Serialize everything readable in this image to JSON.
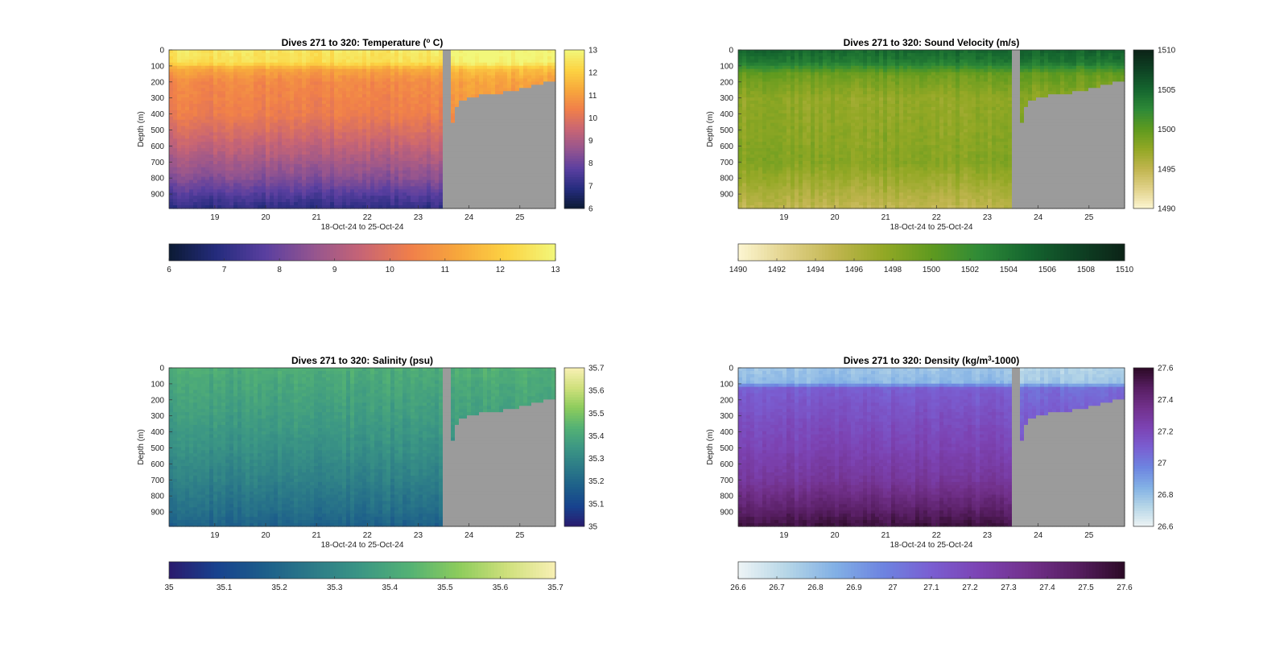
{
  "figure": {
    "mask_color": "#9b9b9b",
    "tick_color": "#222222"
  },
  "chart_data": [
    {
      "type": "heatmap",
      "id": "temperature",
      "title_parts": [
        "Dives 271 to 320: Temperature (",
        "o",
        " C)"
      ],
      "ylabel": "Depth (m)",
      "xlabel": "18-Oct-24 to 25-Oct-24",
      "x_ticks": [
        "19",
        "20",
        "21",
        "22",
        "23",
        "24",
        "25"
      ],
      "y_ticks": [
        "0",
        "100",
        "200",
        "300",
        "400",
        "500",
        "600",
        "700",
        "800",
        "900"
      ],
      "xlim": [
        18.1,
        25.7
      ],
      "ylim": [
        0,
        990
      ],
      "colorbar_right_ticks": [
        "6",
        "7",
        "8",
        "9",
        "10",
        "11",
        "12",
        "13"
      ],
      "colorbar_bottom_ticks": [
        "6",
        "7",
        "8",
        "9",
        "10",
        "11",
        "12",
        "13"
      ],
      "clim": [
        6,
        13
      ],
      "colormap": [
        "#0b1a33",
        "#252c7e",
        "#5a3fa0",
        "#95558f",
        "#c86574",
        "#f07f4a",
        "#f7a83c",
        "#fcd343",
        "#f2f77a"
      ],
      "profile": [
        [
          0,
          12.6
        ],
        [
          80,
          12.4
        ],
        [
          120,
          11.2
        ],
        [
          200,
          10.6
        ],
        [
          400,
          10.3
        ],
        [
          600,
          9.4
        ],
        [
          800,
          8.4
        ],
        [
          990,
          7.0
        ]
      ],
      "gap_day": 23.58,
      "shallow_profile_shift": 1.0,
      "shallow_depths": [
        [
          23.7,
          450
        ],
        [
          23.82,
          350
        ],
        [
          23.95,
          320
        ],
        [
          24.2,
          300
        ],
        [
          24.45,
          280
        ],
        [
          24.7,
          275
        ],
        [
          24.95,
          260
        ],
        [
          25.2,
          240
        ],
        [
          25.45,
          215
        ],
        [
          25.7,
          200
        ]
      ]
    },
    {
      "type": "heatmap",
      "id": "sound_velocity",
      "title_parts": [
        "Dives 271 to 320: Sound Velocity (m/s)"
      ],
      "ylabel": "Depth (m)",
      "xlabel": "18-Oct-24 to 25-Oct-24",
      "x_ticks": [
        "19",
        "20",
        "21",
        "22",
        "23",
        "24",
        "25"
      ],
      "y_ticks": [
        "0",
        "100",
        "200",
        "300",
        "400",
        "500",
        "600",
        "700",
        "800",
        "900"
      ],
      "xlim": [
        18.1,
        25.7
      ],
      "ylim": [
        0,
        990
      ],
      "colorbar_right_ticks": [
        "1490",
        "1495",
        "1500",
        "1505",
        "1510"
      ],
      "colorbar_bottom_ticks": [
        "1490",
        "1492",
        "1494",
        "1496",
        "1498",
        "1500",
        "1502",
        "1504",
        "1506",
        "1508",
        "1510"
      ],
      "clim": [
        1490,
        1510
      ],
      "colormap": [
        "#fdf6d2",
        "#e1d28a",
        "#c1b54f",
        "#93a825",
        "#5f9a1f",
        "#2e8a37",
        "#15662f",
        "#0e4324",
        "#0c2317"
      ],
      "profile": [
        [
          0,
          1505
        ],
        [
          80,
          1503.5
        ],
        [
          150,
          1499.5
        ],
        [
          300,
          1497.5
        ],
        [
          500,
          1497.8
        ],
        [
          700,
          1498.2
        ],
        [
          850,
          1496.5
        ],
        [
          990,
          1495
        ]
      ],
      "gap_day": 23.58,
      "shallow_profile_shift": 0.5,
      "shallow_depths": [
        [
          23.7,
          450
        ],
        [
          23.82,
          350
        ],
        [
          23.95,
          320
        ],
        [
          24.2,
          300
        ],
        [
          24.45,
          280
        ],
        [
          24.7,
          275
        ],
        [
          24.95,
          260
        ],
        [
          25.2,
          240
        ],
        [
          25.45,
          215
        ],
        [
          25.7,
          200
        ]
      ]
    },
    {
      "type": "heatmap",
      "id": "salinity",
      "title_parts": [
        "Dives 271 to 320: Salinity (psu)"
      ],
      "ylabel": "Depth (m)",
      "xlabel": "18-Oct-24 to 25-Oct-24",
      "x_ticks": [
        "19",
        "20",
        "21",
        "22",
        "23",
        "24",
        "25"
      ],
      "y_ticks": [
        "0",
        "100",
        "200",
        "300",
        "400",
        "500",
        "600",
        "700",
        "800",
        "900"
      ],
      "xlim": [
        18.1,
        25.7
      ],
      "ylim": [
        0,
        990
      ],
      "colorbar_right_ticks": [
        "35",
        "35.1",
        "35.2",
        "35.3",
        "35.4",
        "35.5",
        "35.6",
        "35.7"
      ],
      "colorbar_bottom_ticks": [
        "35",
        "35.1",
        "35.2",
        "35.3",
        "35.4",
        "35.5",
        "35.6",
        "35.7"
      ],
      "clim": [
        35,
        35.7
      ],
      "colormap": [
        "#2a1a6e",
        "#17428e",
        "#1d5f8a",
        "#2c7b88",
        "#3c9784",
        "#54b274",
        "#8dcc5c",
        "#cfe07c",
        "#f8f0b4"
      ],
      "profile": [
        [
          0,
          35.42
        ],
        [
          100,
          35.4
        ],
        [
          300,
          35.37
        ],
        [
          500,
          35.33
        ],
        [
          700,
          35.28
        ],
        [
          900,
          35.22
        ],
        [
          990,
          35.18
        ]
      ],
      "gap_day": 23.58,
      "shallow_profile_shift": 0.02,
      "shallow_depths": [
        [
          23.7,
          450
        ],
        [
          23.82,
          350
        ],
        [
          23.95,
          320
        ],
        [
          24.2,
          300
        ],
        [
          24.45,
          280
        ],
        [
          24.7,
          275
        ],
        [
          24.95,
          260
        ],
        [
          25.2,
          240
        ],
        [
          25.45,
          215
        ],
        [
          25.7,
          200
        ]
      ]
    },
    {
      "type": "heatmap",
      "id": "density",
      "title_parts": [
        "Dives 271 to 320: Density (kg/m",
        "3",
        "-1000)"
      ],
      "ylabel": "Depth (m)",
      "xlabel": "18-Oct-24 to 25-Oct-24",
      "x_ticks": [
        "19",
        "20",
        "21",
        "22",
        "23",
        "24",
        "25"
      ],
      "y_ticks": [
        "0",
        "100",
        "200",
        "300",
        "400",
        "500",
        "600",
        "700",
        "800",
        "900"
      ],
      "xlim": [
        18.1,
        25.7
      ],
      "ylim": [
        0,
        990
      ],
      "colorbar_right_ticks": [
        "26.6",
        "26.8",
        "27",
        "27.2",
        "27.4",
        "27.6"
      ],
      "colorbar_bottom_ticks": [
        "26.6",
        "26.7",
        "26.8",
        "26.9",
        "27",
        "27.1",
        "27.2",
        "27.3",
        "27.4",
        "27.5",
        "27.6"
      ],
      "clim": [
        26.6,
        27.6
      ],
      "colormap": [
        "#eef4f5",
        "#b6d6e7",
        "#82b0e5",
        "#6d84e0",
        "#7a5ed1",
        "#7c43b3",
        "#72318c",
        "#571e62",
        "#2c0a26"
      ],
      "profile": [
        [
          0,
          26.78
        ],
        [
          90,
          26.82
        ],
        [
          130,
          27.1
        ],
        [
          300,
          27.16
        ],
        [
          500,
          27.22
        ],
        [
          700,
          27.3
        ],
        [
          850,
          27.42
        ],
        [
          990,
          27.55
        ]
      ],
      "gap_day": 23.58,
      "shallow_profile_shift": -0.1,
      "shallow_depths": [
        [
          23.7,
          450
        ],
        [
          23.82,
          350
        ],
        [
          23.95,
          320
        ],
        [
          24.2,
          300
        ],
        [
          24.45,
          280
        ],
        [
          24.7,
          275
        ],
        [
          24.95,
          260
        ],
        [
          25.2,
          240
        ],
        [
          25.45,
          215
        ],
        [
          25.7,
          200
        ]
      ]
    }
  ]
}
